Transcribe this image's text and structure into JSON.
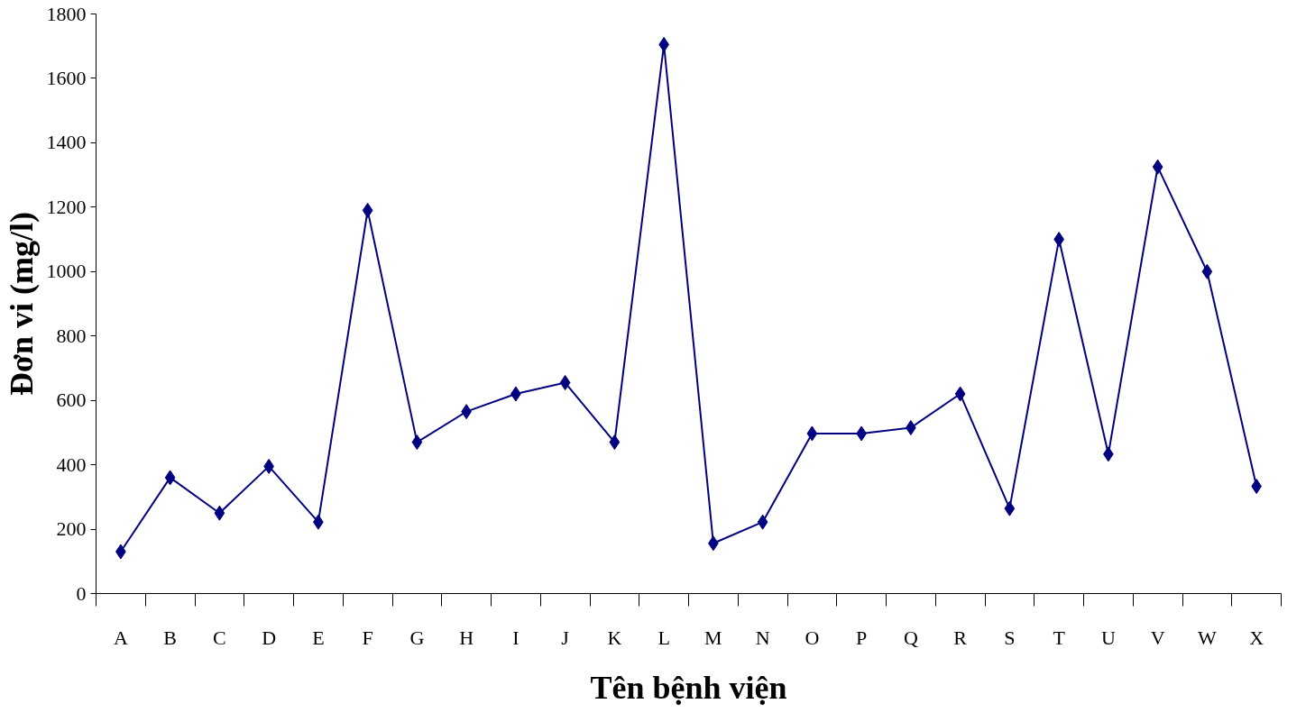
{
  "chart_data": {
    "type": "line",
    "xlabel": "Tên bệnh viện",
    "ylabel": "Đơn vi (mg/l)",
    "categories": [
      "A",
      "B",
      "C",
      "D",
      "E",
      "F",
      "G",
      "H",
      "I",
      "J",
      "K",
      "L",
      "M",
      "N",
      "O",
      "P",
      "Q",
      "R",
      "S",
      "T",
      "U",
      "V",
      "W",
      "X"
    ],
    "series": [
      {
        "color": "#000080",
        "values": [
          130,
          360,
          250,
          395,
          222,
          1190,
          470,
          565,
          620,
          655,
          470,
          1705,
          156,
          222,
          497,
          497,
          515,
          620,
          264,
          1100,
          433,
          1325,
          1000,
          333
        ]
      }
    ],
    "ylim": [
      0,
      1800
    ],
    "yticks": [
      0,
      200,
      400,
      600,
      800,
      1000,
      1200,
      1400,
      1600,
      1800
    ],
    "grid": false,
    "marker": "diamond",
    "line_style": "solid"
  }
}
